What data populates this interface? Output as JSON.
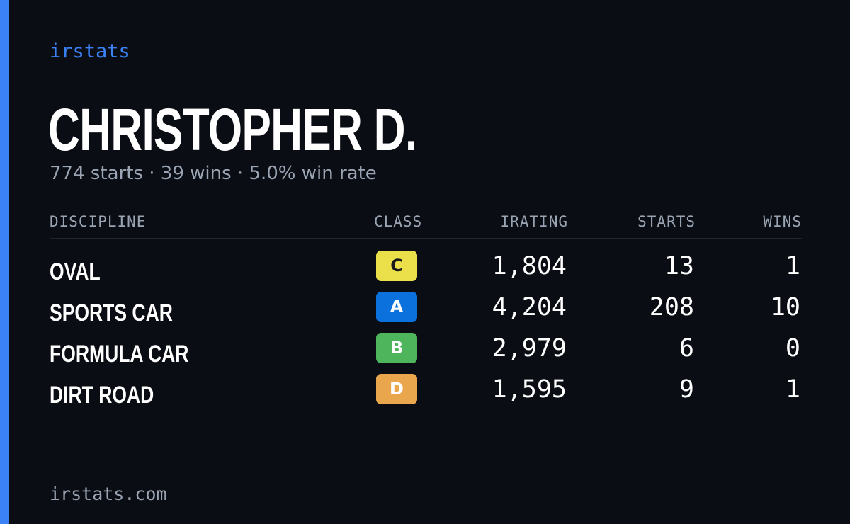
{
  "brand": "irstats",
  "driver": {
    "name": "CHRISTOPHER D.",
    "summary": "774 starts · 39 wins · 5.0% win rate"
  },
  "table": {
    "headers": {
      "discipline": "DISCIPLINE",
      "class": "CLASS",
      "irating": "IRATING",
      "starts": "STARTS",
      "wins": "WINS"
    },
    "rows": [
      {
        "discipline": "OVAL",
        "class": "C",
        "class_color": "#ebe04a",
        "class_text_color": "#1a1a1a",
        "irating": "1,804",
        "starts": "13",
        "wins": "1"
      },
      {
        "discipline": "SPORTS CAR",
        "class": "A",
        "class_color": "#0b72dd",
        "class_text_color": "#ffffff",
        "irating": "4,204",
        "starts": "208",
        "wins": "10"
      },
      {
        "discipline": "FORMULA CAR",
        "class": "B",
        "class_color": "#4fb55c",
        "class_text_color": "#ffffff",
        "irating": "2,979",
        "starts": "6",
        "wins": "0"
      },
      {
        "discipline": "DIRT ROAD",
        "class": "D",
        "class_color": "#eaa64d",
        "class_text_color": "#ffffff",
        "irating": "1,595",
        "starts": "9",
        "wins": "1"
      }
    ]
  },
  "footer": "irstats.com",
  "colors": {
    "background": "#0a0d14",
    "accent": "#3b82f6",
    "muted": "#9aa4b2"
  }
}
